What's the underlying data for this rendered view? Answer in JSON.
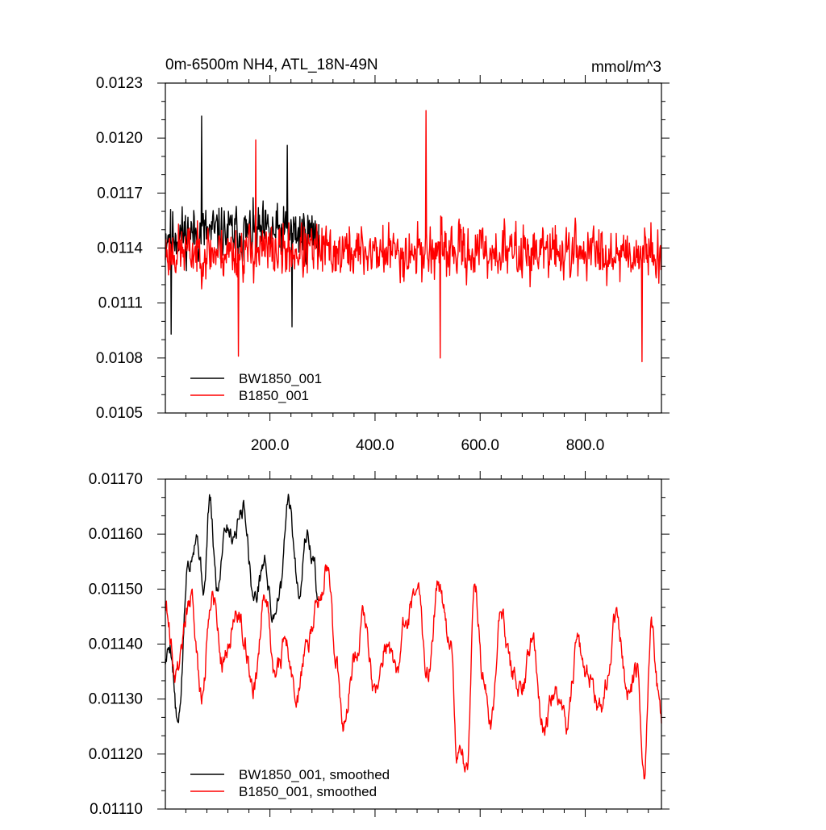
{
  "chart_data": [
    {
      "type": "line",
      "title": "0m-6500m NH4, ATL_18N-49N",
      "units": "mmol/m^3",
      "xlabel": "",
      "ylabel": "",
      "xlim": [
        1,
        945
      ],
      "ylim": [
        0.0105,
        0.0123
      ],
      "xticks": [
        200,
        400,
        600,
        800
      ],
      "xtick_labels": [
        "200.0",
        "400.0",
        "600.0",
        "800.0"
      ],
      "yticks": [
        0.0105,
        0.0108,
        0.0111,
        0.0114,
        0.0117,
        0.012,
        0.0123
      ],
      "ytick_labels": [
        "0.0105",
        "0.0108",
        "0.0111",
        "0.0114",
        "0.0117",
        "0.0120",
        "0.0123"
      ],
      "legend_position": "bottom-left",
      "grid": false,
      "series": [
        {
          "name": "BW1850_001",
          "color": "#000000",
          "x_range": [
            1,
            293
          ],
          "mean": 0.01148,
          "amplitude": 0.00028,
          "extremes": [
            [
              70,
              0.01212
            ],
            [
              233,
              0.01196
            ],
            [
              12,
              0.01093
            ],
            [
              242,
              0.01097
            ]
          ],
          "seed": 11,
          "smooth": 1
        },
        {
          "name": "B1850_001",
          "color": "#ff0000",
          "x_range": [
            1,
            945
          ],
          "mean": 0.01138,
          "amplitude": 0.00028,
          "extremes": [
            [
              497,
              0.01215
            ],
            [
              140,
              0.01081
            ],
            [
              524,
              0.0108
            ],
            [
              908,
              0.01078
            ],
            [
              173,
              0.01199
            ]
          ],
          "seed": 23,
          "smooth": 1
        }
      ]
    },
    {
      "type": "line",
      "title": "",
      "units": "",
      "xlabel": "",
      "ylabel": "",
      "xlim": [
        1,
        945
      ],
      "ylim": [
        0.0111,
        0.0117
      ],
      "xticks": [
        200,
        400,
        600,
        800
      ],
      "xtick_labels": [],
      "yticks": [
        0.0111,
        0.0112,
        0.0113,
        0.0114,
        0.0115,
        0.0116,
        0.0117
      ],
      "ytick_labels": [
        "0.01110",
        "0.01120",
        "0.01130",
        "0.01140",
        "0.01150",
        "0.01160",
        "0.01170"
      ],
      "legend_position": "bottom-left",
      "grid": false,
      "series": [
        {
          "name": "BW1850_001, smoothed",
          "color": "#000000",
          "x_range": [
            1,
            293
          ],
          "anchors": [
            [
              1,
              0.01137
            ],
            [
              10,
              0.0114
            ],
            [
              25,
              0.01125
            ],
            [
              45,
              0.01155
            ],
            [
              60,
              0.0116
            ],
            [
              75,
              0.0115
            ],
            [
              85,
              0.01166
            ],
            [
              100,
              0.0115
            ],
            [
              115,
              0.01162
            ],
            [
              130,
              0.0116
            ],
            [
              150,
              0.01165
            ],
            [
              170,
              0.01148
            ],
            [
              190,
              0.01155
            ],
            [
              205,
              0.01145
            ],
            [
              220,
              0.0115
            ],
            [
              235,
              0.01166
            ],
            [
              255,
              0.0115
            ],
            [
              270,
              0.0116
            ],
            [
              283,
              0.01155
            ],
            [
              293,
              0.01147
            ]
          ],
          "wiggle": 2.5e-05,
          "seed": 5
        },
        {
          "name": "B1850_001, smoothed",
          "color": "#ff0000",
          "x_range": [
            1,
            945
          ],
          "anchors": [
            [
              1,
              0.01148
            ],
            [
              20,
              0.01135
            ],
            [
              50,
              0.01148
            ],
            [
              70,
              0.0113
            ],
            [
              90,
              0.0115
            ],
            [
              110,
              0.01137
            ],
            [
              140,
              0.01146
            ],
            [
              170,
              0.01132
            ],
            [
              190,
              0.0115
            ],
            [
              210,
              0.01135
            ],
            [
              230,
              0.0114
            ],
            [
              250,
              0.0113
            ],
            [
              270,
              0.0114
            ],
            [
              300,
              0.0115
            ],
            [
              310,
              0.01155
            ],
            [
              325,
              0.01138
            ],
            [
              340,
              0.01125
            ],
            [
              360,
              0.01137
            ],
            [
              380,
              0.01145
            ],
            [
              400,
              0.0113
            ],
            [
              420,
              0.0114
            ],
            [
              440,
              0.01135
            ],
            [
              460,
              0.01145
            ],
            [
              480,
              0.0115
            ],
            [
              500,
              0.01135
            ],
            [
              520,
              0.0115
            ],
            [
              545,
              0.0114
            ],
            [
              555,
              0.0112
            ],
            [
              575,
              0.01118
            ],
            [
              590,
              0.0115
            ],
            [
              605,
              0.01135
            ],
            [
              620,
              0.01125
            ],
            [
              640,
              0.01145
            ],
            [
              660,
              0.01135
            ],
            [
              680,
              0.01132
            ],
            [
              700,
              0.0114
            ],
            [
              720,
              0.01125
            ],
            [
              745,
              0.01132
            ],
            [
              765,
              0.01125
            ],
            [
              785,
              0.0114
            ],
            [
              800,
              0.01135
            ],
            [
              830,
              0.01128
            ],
            [
              860,
              0.01145
            ],
            [
              880,
              0.0113
            ],
            [
              900,
              0.01135
            ],
            [
              912,
              0.01116
            ],
            [
              925,
              0.01144
            ],
            [
              940,
              0.0113
            ],
            [
              945,
              0.01125
            ]
          ],
          "wiggle": 3e-05,
          "seed": 9
        }
      ]
    }
  ]
}
